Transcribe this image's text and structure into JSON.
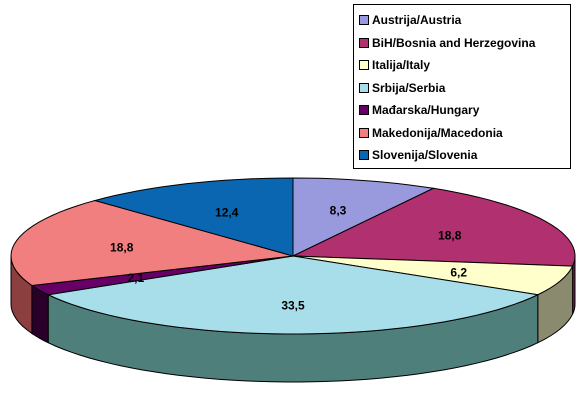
{
  "chart_data": {
    "type": "pie",
    "style": "3d-exploded-tilted",
    "values": [
      8.3,
      18.8,
      6.2,
      33.5,
      2.1,
      18.8,
      12.4
    ],
    "data_labels": [
      "8,3",
      "18,8",
      "6,2",
      "33,5",
      "2,1",
      "18,8",
      "12,4"
    ],
    "legend": {
      "placement": "top-right",
      "items": [
        {
          "label": "Austrija/Austria",
          "color": "#9999dd"
        },
        {
          "label": "BiH/Bosnia and Herzegovina",
          "color": "#b03070"
        },
        {
          "label": "Italija/Italy",
          "color": "#ffffcc"
        },
        {
          "label": "Srbija/Serbia",
          "color": "#a8ddea"
        },
        {
          "label": "Mađarska/Hungary",
          "color": "#660066"
        },
        {
          "label": "Makedonija/Macedonia",
          "color": "#f27f7f"
        },
        {
          "label": "Slovenija/Slovenia",
          "color": "#0a66b0"
        }
      ]
    },
    "side_colors": [
      "#5c5c86",
      "#6a1f45",
      "#8a8a6e",
      "#4f7f7a",
      "#2a002a",
      "#8b3f3f",
      "#063c68"
    ]
  }
}
